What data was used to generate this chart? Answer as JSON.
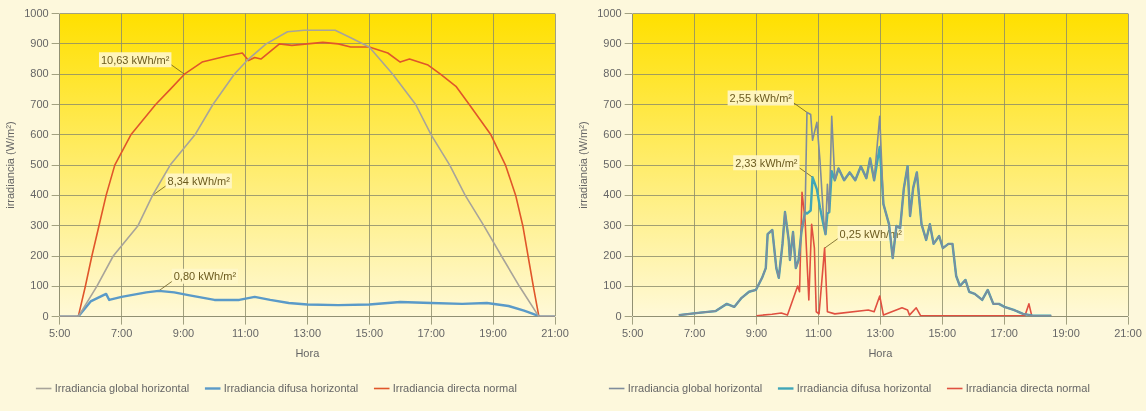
{
  "chart_data": [
    {
      "type": "line",
      "xlabel": "Hora",
      "ylabel": "irradiancia (W/m²)",
      "xlim": [
        5,
        21
      ],
      "ylim": [
        0,
        1000
      ],
      "xticks": [
        {
          "value": 5,
          "label": "5:00"
        },
        {
          "value": 7,
          "label": "7:00"
        },
        {
          "value": 9,
          "label": "9:00"
        },
        {
          "value": 11,
          "label": "11:00"
        },
        {
          "value": 13,
          "label": "13:00"
        },
        {
          "value": 15,
          "label": "15:00"
        },
        {
          "value": 17,
          "label": "17:00"
        },
        {
          "value": 19,
          "label": "19:00"
        },
        {
          "value": 21,
          "label": "21:00"
        }
      ],
      "yticks": [
        0,
        100,
        200,
        300,
        400,
        500,
        600,
        700,
        800,
        900,
        1000
      ],
      "grid": true,
      "legend": "bottom",
      "marker": "none",
      "line_style": "solid",
      "annotations": [
        {
          "text": "10,63 kWh/m²",
          "x": 9.03,
          "y": 800
        },
        {
          "text": "8,34 kWh/m²",
          "x": 8.0,
          "y": 400
        },
        {
          "text": "0,80 kWh/m²",
          "x": 8.2,
          "y": 85
        }
      ],
      "series": [
        {
          "name": "Irradiancia global horizontal",
          "color": "#a8a49a",
          "x": [
            5,
            5.6,
            6.2,
            6.73,
            7.53,
            8.0,
            8.57,
            9.37,
            9.95,
            10.64,
            11.1,
            11.67,
            12.36,
            12.9,
            13.9,
            14.4,
            15.0,
            15.76,
            16.5,
            17.0,
            17.6,
            18.1,
            18.7,
            19.27,
            19.85,
            20.48,
            21
          ],
          "values": [
            0,
            0,
            100,
            200,
            300,
            400,
            500,
            600,
            700,
            800,
            850,
            900,
            940,
            945,
            945,
            920,
            890,
            800,
            700,
            600,
            500,
            400,
            300,
            200,
            100,
            0,
            0
          ]
        },
        {
          "name": "Irradiancia difusa horizontal",
          "color": "#5a9ac8",
          "x": [
            5,
            5.6,
            6.0,
            6.5,
            6.6,
            7.0,
            7.8,
            8.2,
            8.7,
            9.2,
            10.0,
            10.8,
            11.3,
            11.8,
            12.4,
            13.0,
            14.0,
            15.0,
            16.0,
            17.0,
            18.0,
            18.8,
            19.5,
            20.0,
            20.4,
            20.5,
            21
          ],
          "values": [
            0,
            0,
            50,
            75,
            55,
            65,
            80,
            85,
            80,
            70,
            55,
            55,
            65,
            55,
            45,
            40,
            38,
            40,
            48,
            45,
            42,
            45,
            35,
            20,
            5,
            0,
            0
          ]
        },
        {
          "name": "Irradiancia directa normal",
          "color": "#e0562a",
          "x": [
            5,
            5.6,
            5.83,
            6.04,
            6.27,
            6.5,
            6.78,
            7.3,
            8.1,
            8.57,
            9.03,
            9.6,
            10.0,
            10.4,
            10.9,
            11.1,
            11.3,
            11.5,
            12.1,
            12.5,
            13.0,
            13.5,
            14.0,
            14.4,
            15.0,
            15.6,
            16.0,
            16.3,
            16.9,
            17.3,
            17.8,
            18.23,
            18.93,
            19.4,
            19.73,
            19.96,
            20.13,
            20.3,
            20.48,
            21
          ],
          "values": [
            0,
            0,
            100,
            200,
            300,
            400,
            500,
            600,
            700,
            750,
            800,
            840,
            850,
            860,
            870,
            845,
            855,
            850,
            900,
            895,
            900,
            905,
            900,
            890,
            890,
            870,
            840,
            850,
            830,
            800,
            760,
            700,
            600,
            500,
            400,
            300,
            200,
            100,
            0,
            0
          ]
        }
      ]
    },
    {
      "type": "line",
      "xlabel": "Hora",
      "ylabel": "irradiancia (W/m²)",
      "xlim": [
        5,
        21
      ],
      "ylim": [
        0,
        1000
      ],
      "xticks": [
        {
          "value": 5,
          "label": "5:00"
        },
        {
          "value": 7,
          "label": "7:00"
        },
        {
          "value": 9,
          "label": "9:00"
        },
        {
          "value": 11,
          "label": "11:00"
        },
        {
          "value": 13,
          "label": "13:00"
        },
        {
          "value": 15,
          "label": "15:00"
        },
        {
          "value": 17,
          "label": "17:00"
        },
        {
          "value": 19,
          "label": "19:00"
        },
        {
          "value": 21,
          "label": "21:00"
        }
      ],
      "yticks": [
        0,
        100,
        200,
        300,
        400,
        500,
        600,
        700,
        800,
        900,
        1000
      ],
      "grid": true,
      "legend": "bottom",
      "marker": "none",
      "line_style": "solid",
      "annotations": [
        {
          "text": "2,55 kWh/m²",
          "x": 10.63,
          "y": 674
        },
        {
          "text": "2,33 kWh/m²",
          "x": 10.81,
          "y": 460
        },
        {
          "text": "0,25 kWh/m²",
          "x": 11.2,
          "y": 226
        }
      ],
      "series": [
        {
          "name": "Irradiancia global horizontal",
          "color": "#7f8c9c",
          "x": [
            6.49,
            7.19,
            7.67,
            8.04,
            8.28,
            8.52,
            8.76,
            8.98,
            9.18,
            9.3,
            9.36,
            9.51,
            9.64,
            9.72,
            9.84,
            9.92,
            10.04,
            10.08,
            10.18,
            10.27,
            10.36,
            10.45,
            10.57,
            10.63,
            10.75,
            10.81,
            10.95,
            11.05,
            11.17,
            11.23,
            11.29,
            11.35,
            11.43,
            11.53,
            11.65,
            11.83,
            12.01,
            12.19,
            12.37,
            12.55,
            12.67,
            12.8,
            12.98,
            13.1,
            13.28,
            13.4,
            13.52,
            13.64,
            13.76,
            13.88,
            13.96,
            14.06,
            14.18,
            14.33,
            14.48,
            14.6,
            14.72,
            14.9,
            15.02,
            15.2,
            15.33,
            15.45,
            15.57,
            15.75,
            15.87,
            16.05,
            16.29,
            16.47,
            16.65,
            16.83,
            17.01,
            17.31,
            17.61,
            17.92,
            18.52
          ],
          "values": [
            5,
            13,
            18,
            42,
            32,
            62,
            82,
            88,
            128,
            160,
            272,
            286,
            160,
            128,
            240,
            345,
            253,
            187,
            279,
            160,
            187,
            279,
            345,
            674,
            667,
            582,
            641,
            516,
            318,
            272,
            437,
            345,
            661,
            450,
            489,
            450,
            476,
            450,
            496,
            457,
            522,
            450,
            661,
            371,
            305,
            193,
            299,
            292,
            424,
            496,
            332,
            424,
            476,
            305,
            253,
            305,
            240,
            266,
            226,
            240,
            240,
            134,
            101,
            121,
            82,
            75,
            55,
            88,
            42,
            42,
            32,
            22,
            9,
            3,
            3
          ]
        },
        {
          "name": "Irradiancia difusa horizontal",
          "color": "#3fa6b8",
          "x": [
            6.49,
            7.19,
            7.67,
            8.04,
            8.28,
            8.52,
            8.76,
            8.98,
            9.18,
            9.3,
            9.36,
            9.51,
            9.64,
            9.72,
            9.84,
            9.92,
            10.04,
            10.08,
            10.18,
            10.27,
            10.36,
            10.45,
            10.57,
            10.63,
            10.75,
            10.81,
            10.95,
            11.05,
            11.17,
            11.23,
            11.29,
            11.35,
            11.43,
            11.53,
            11.65,
            11.83,
            12.01,
            12.19,
            12.37,
            12.55,
            12.67,
            12.8,
            12.98,
            13.1,
            13.28,
            13.4,
            13.52,
            13.64,
            13.76,
            13.88,
            13.96,
            14.06,
            14.18,
            14.33,
            14.48,
            14.6,
            14.72,
            14.9,
            15.02,
            15.2,
            15.33,
            15.45,
            15.57,
            15.75,
            15.87,
            16.05,
            16.29,
            16.47,
            16.65,
            16.83,
            17.01,
            17.31,
            17.61,
            17.92,
            18.52
          ],
          "values": [
            5,
            13,
            18,
            42,
            32,
            62,
            82,
            88,
            128,
            160,
            272,
            286,
            160,
            128,
            240,
            345,
            253,
            187,
            279,
            160,
            187,
            279,
            345,
            340,
            350,
            460,
            420,
            360,
            300,
            272,
            340,
            345,
            480,
            450,
            489,
            450,
            476,
            450,
            496,
            457,
            522,
            450,
            560,
            371,
            305,
            193,
            299,
            292,
            424,
            496,
            332,
            424,
            476,
            305,
            253,
            305,
            240,
            266,
            226,
            240,
            240,
            134,
            101,
            121,
            82,
            75,
            55,
            88,
            42,
            42,
            32,
            22,
            9,
            3,
            3
          ]
        },
        {
          "name": "Irradiancia directa normal",
          "color": "#e05040",
          "x": [
            9.0,
            9.5,
            9.8,
            10.0,
            10.33,
            10.39,
            10.47,
            10.57,
            10.69,
            10.78,
            10.87,
            10.93,
            11.02,
            11.2,
            11.29,
            11.53,
            12.61,
            12.8,
            12.98,
            13.1,
            13.7,
            13.88,
            13.94,
            14.16,
            14.3,
            17.67,
            17.8,
            17.89,
            18.52
          ],
          "values": [
            3,
            8,
            12,
            5,
            101,
            82,
            410,
            318,
            55,
            305,
            226,
            16,
            9,
            226,
            16,
            9,
            22,
            16,
            68,
            5,
            29,
            22,
            5,
            29,
            3,
            3,
            42,
            3,
            3
          ]
        }
      ]
    }
  ]
}
